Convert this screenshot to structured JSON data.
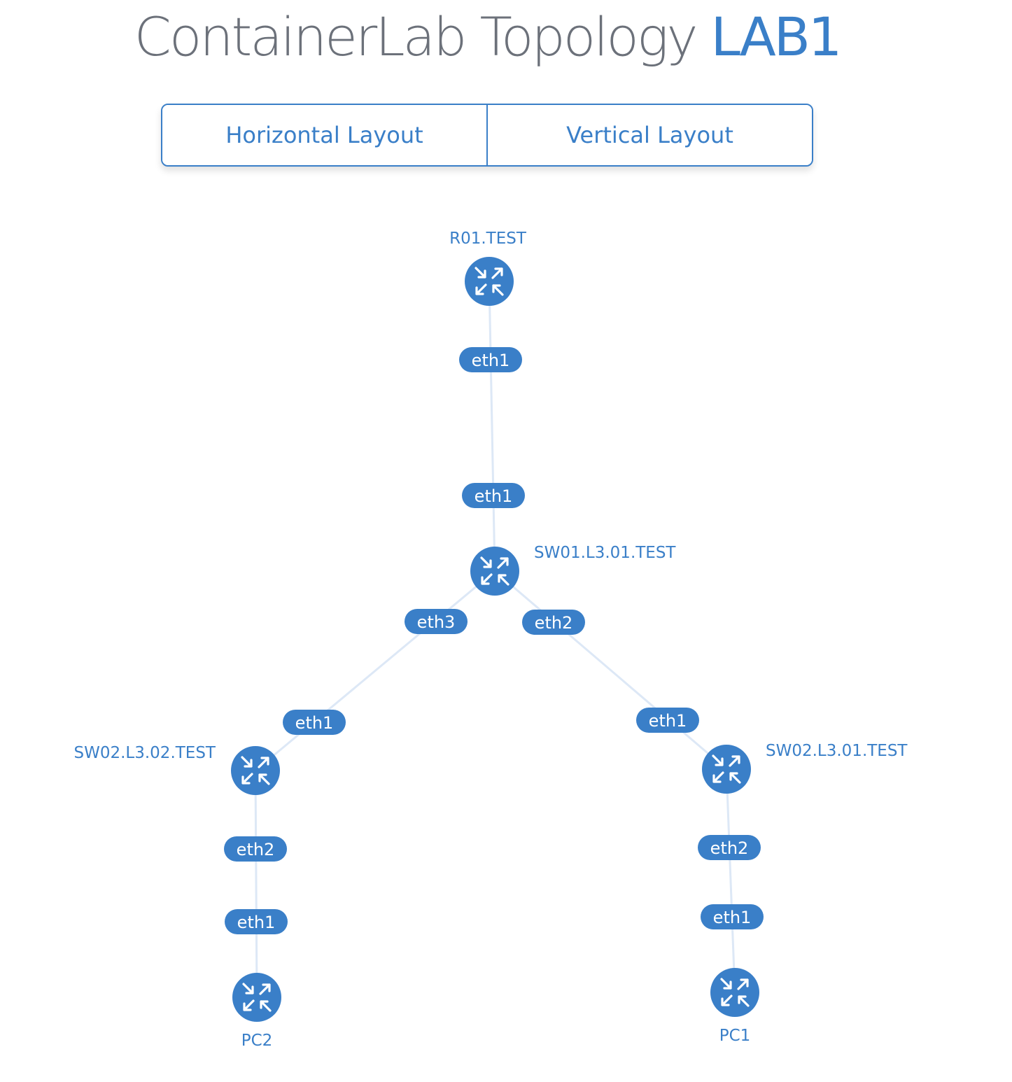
{
  "header": {
    "title_prefix": "ContainerLab Topology",
    "title_lab": "LAB1"
  },
  "layout_buttons": {
    "horizontal": "Horizontal Layout",
    "vertical": "Vertical Layout"
  },
  "colors": {
    "accent": "#3a7fc8",
    "link": "#dde8f6",
    "title_gray": "#6c717a"
  },
  "topology": {
    "nodes": [
      {
        "id": "r01",
        "label": "R01.TEST",
        "icon": "router-icon"
      },
      {
        "id": "sw01",
        "label": "SW01.L3.01.TEST",
        "icon": "router-icon"
      },
      {
        "id": "sw02b",
        "label": "SW02.L3.02.TEST",
        "icon": "router-icon"
      },
      {
        "id": "sw02a",
        "label": "SW02.L3.01.TEST",
        "icon": "router-icon"
      },
      {
        "id": "pc2",
        "label": "PC2",
        "icon": "router-icon"
      },
      {
        "id": "pc1",
        "label": "PC1",
        "icon": "router-icon"
      }
    ],
    "links": [
      {
        "source": "r01",
        "target": "sw01",
        "source_iface": "eth1",
        "target_iface": "eth1"
      },
      {
        "source": "sw01",
        "target": "sw02b",
        "source_iface": "eth3",
        "target_iface": "eth1"
      },
      {
        "source": "sw01",
        "target": "sw02a",
        "source_iface": "eth2",
        "target_iface": "eth1"
      },
      {
        "source": "sw02b",
        "target": "pc2",
        "source_iface": "eth2",
        "target_iface": "eth1"
      },
      {
        "source": "sw02a",
        "target": "pc1",
        "source_iface": "eth2",
        "target_iface": "eth1"
      }
    ]
  }
}
